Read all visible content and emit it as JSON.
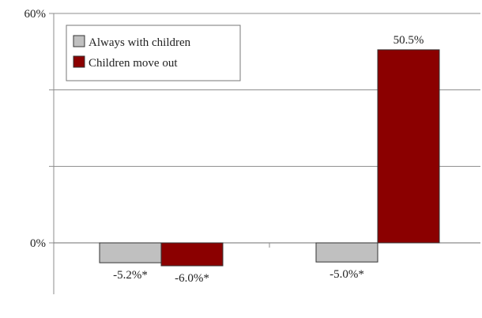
{
  "chart_data": {
    "type": "bar",
    "title": "",
    "xlabel": "",
    "ylabel": "",
    "categories": [
      "",
      ""
    ],
    "series": [
      {
        "name": "Always with children",
        "color": "#c0c0c0",
        "values": [
          -5.2,
          -5.0
        ],
        "labels": [
          "-5.2%*",
          "-5.0%*"
        ]
      },
      {
        "name": "Children move out",
        "color": "#8b0000",
        "values": [
          -6.0,
          50.5
        ],
        "labels": [
          "-6.0%*",
          "50.5%"
        ]
      }
    ],
    "ylim": [
      -15,
      60
    ],
    "yticks": [
      {
        "value": 60,
        "label": "60%"
      },
      {
        "value": 0,
        "label": "0%"
      }
    ],
    "gridlines": [
      60,
      40,
      20
    ],
    "grid": true,
    "legend_position": "top-left"
  }
}
